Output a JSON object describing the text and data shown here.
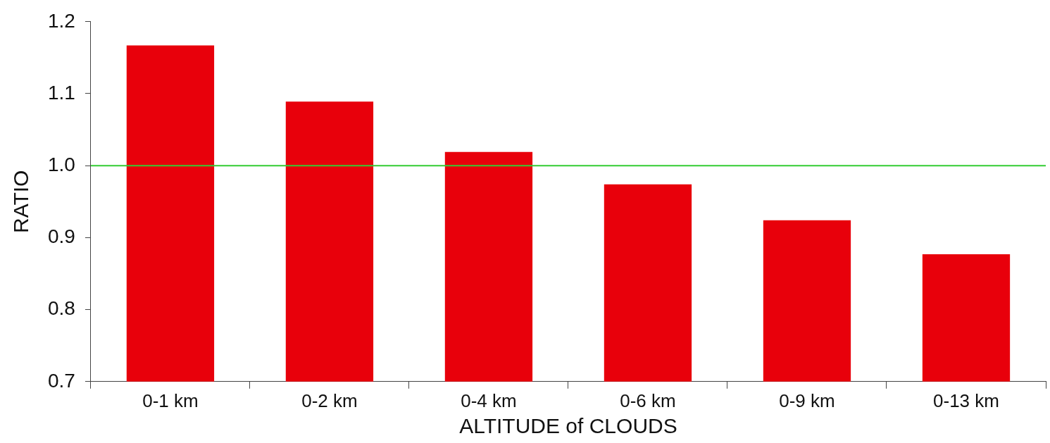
{
  "chart_data": {
    "type": "bar",
    "xlabel": "ALTITUDE of CLOUDS",
    "ylabel": "RATIO",
    "categories": [
      "0-1 km",
      "0-2 km",
      "0-4 km",
      "0-6 km",
      "0-9 km",
      "0-13 km"
    ],
    "values": [
      1.167,
      1.089,
      1.019,
      0.974,
      0.924,
      0.877
    ],
    "color": "#e8000b",
    "ylim": [
      0.7,
      1.2
    ],
    "yticks": [
      0.7,
      0.8,
      0.9,
      {
        "value": 1,
        "label": "1.0"
      },
      1.1,
      1.2
    ],
    "grid": false,
    "legend": false,
    "ref_lines": [
      {
        "axis": "y",
        "value": 1.0,
        "color": "#33cc33"
      }
    ]
  }
}
